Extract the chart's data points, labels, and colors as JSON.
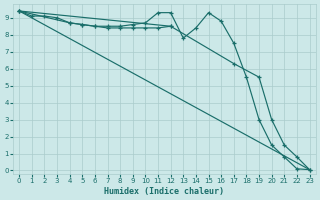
{
  "xlabel": "Humidex (Indice chaleur)",
  "bg_color": "#cce8e8",
  "grid_color": "#aacccc",
  "line_color": "#1a6e6a",
  "xlim": [
    -0.5,
    23.5
  ],
  "ylim": [
    -0.2,
    9.8
  ],
  "xticks": [
    0,
    1,
    2,
    3,
    4,
    5,
    6,
    7,
    8,
    9,
    10,
    11,
    12,
    13,
    14,
    15,
    16,
    17,
    18,
    19,
    20,
    21,
    22,
    23
  ],
  "yticks": [
    0,
    1,
    2,
    3,
    4,
    5,
    6,
    7,
    8,
    9
  ],
  "line1_x": [
    0,
    1,
    2,
    3,
    4,
    5,
    6,
    7,
    8,
    9,
    10,
    11,
    12,
    13,
    14,
    15,
    16,
    17,
    18,
    19,
    20,
    21,
    22,
    23
  ],
  "line1_y": [
    9.4,
    9.1,
    9.1,
    9.0,
    8.7,
    8.6,
    8.5,
    8.5,
    8.5,
    8.6,
    8.7,
    9.3,
    9.3,
    7.8,
    8.4,
    9.3,
    8.8,
    7.5,
    5.5,
    3.0,
    1.5,
    0.8,
    0.1,
    0.05
  ],
  "line2_x": [
    0,
    4,
    5,
    6,
    7,
    8,
    9,
    10,
    11,
    12
  ],
  "line2_y": [
    9.4,
    8.7,
    8.6,
    8.5,
    8.4,
    8.4,
    8.4,
    8.4,
    8.4,
    8.5
  ],
  "line3_x": [
    0,
    23
  ],
  "line3_y": [
    9.4,
    0.05
  ],
  "line4_x": [
    0,
    23
  ],
  "line4_y": [
    9.4,
    0.05
  ],
  "line5_x": [
    0,
    12,
    17,
    19,
    20,
    21,
    22,
    23
  ],
  "line5_y": [
    9.4,
    8.5,
    6.3,
    5.5,
    3.0,
    1.5,
    0.8,
    0.05
  ]
}
